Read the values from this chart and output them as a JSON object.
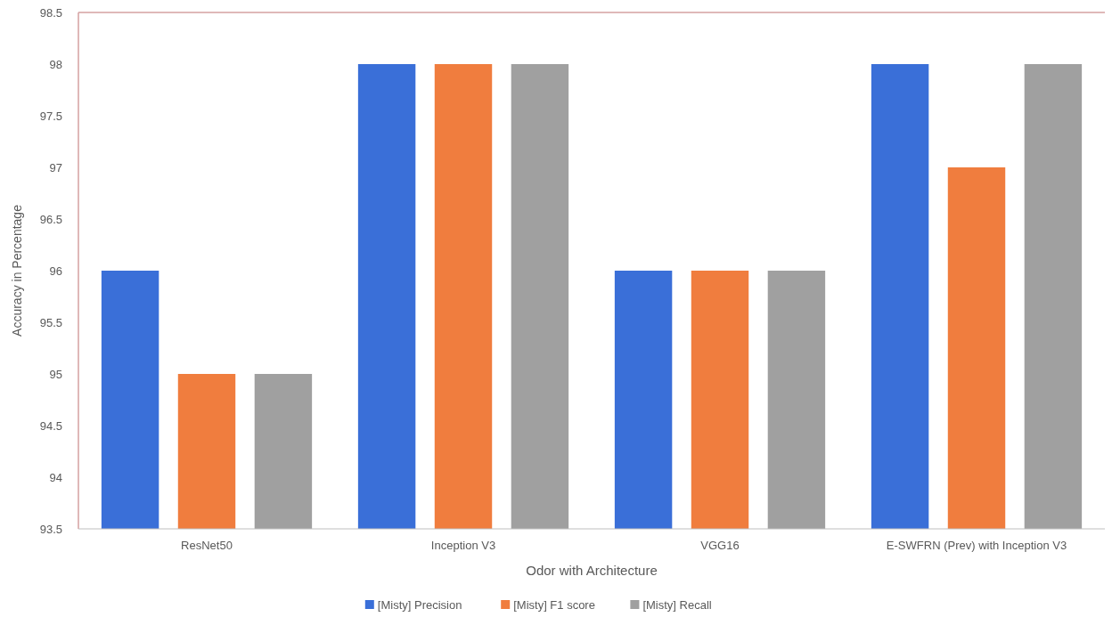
{
  "chart_data": {
    "type": "bar",
    "xlabel": "Odor with Architecture",
    "ylabel": "Accuracy in Percentage",
    "categories": [
      "ResNet50",
      "Inception V3",
      "VGG16",
      "E-SWFRN (Prev) with Inception V3"
    ],
    "series": [
      {
        "name": "[Misty] Precision",
        "color": "#3a6fd8",
        "values": [
          96,
          98,
          96,
          98
        ]
      },
      {
        "name": "[Misty] F1 score",
        "color": "#f07d3e",
        "values": [
          95,
          98,
          96,
          97
        ]
      },
      {
        "name": "[Misty] Recall",
        "color": "#a0a0a0",
        "values": [
          95,
          98,
          96,
          98
        ]
      }
    ],
    "ylim": [
      93.5,
      98.5
    ],
    "yticks": [
      93.5,
      94,
      94.5,
      95,
      95.5,
      96,
      96.5,
      97,
      97.5,
      98,
      98.5
    ],
    "grid": false,
    "legend": "bottom"
  }
}
